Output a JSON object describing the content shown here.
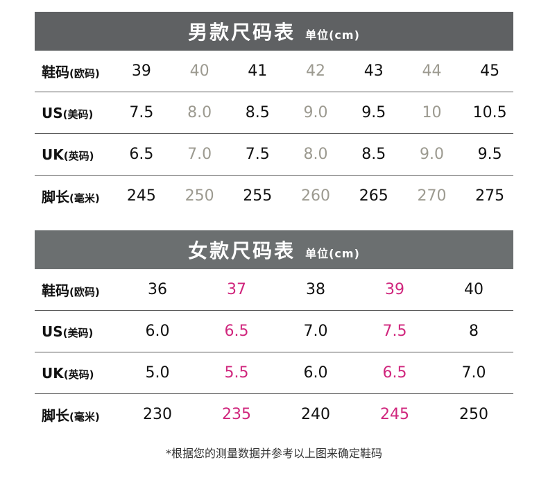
{
  "men": {
    "title": "男款尺码表",
    "unit": "单位(cm)",
    "rows": [
      {
        "label": "鞋码",
        "sub": "(欧码)",
        "values": [
          "39",
          "40",
          "41",
          "42",
          "43",
          "44",
          "45"
        ]
      },
      {
        "label": "US",
        "sub": "(美码)",
        "values": [
          "7.5",
          "8.0",
          "8.5",
          "9.0",
          "9.5",
          "10",
          "10.5"
        ]
      },
      {
        "label": "UK",
        "sub": "(英码)",
        "values": [
          "6.5",
          "7.0",
          "7.5",
          "8.0",
          "8.5",
          "9.0",
          "9.5"
        ]
      },
      {
        "label": "脚长",
        "sub": "(毫米)",
        "values": [
          "245",
          "250",
          "255",
          "260",
          "265",
          "270",
          "275"
        ]
      }
    ]
  },
  "women": {
    "title": "女款尺码表",
    "unit": "单位(cm)",
    "rows": [
      {
        "label": "鞋码",
        "sub": "(欧码)",
        "values": [
          "36",
          "37",
          "38",
          "39",
          "40"
        ]
      },
      {
        "label": "US",
        "sub": "(美码)",
        "values": [
          "6.0",
          "6.5",
          "7.0",
          "7.5",
          "8"
        ]
      },
      {
        "label": "UK",
        "sub": "(英码)",
        "values": [
          "5.0",
          "5.5",
          "6.0",
          "6.5",
          "7.0"
        ]
      },
      {
        "label": "脚长",
        "sub": "(毫米)",
        "values": [
          "230",
          "235",
          "240",
          "245",
          "250"
        ]
      }
    ]
  },
  "colors": {
    "men_banner": "#5f6163",
    "women_banner": "#6b6f70",
    "men_alt_value": "#9c9a90",
    "women_alt_value": "#d0267d"
  },
  "note": "*根据您的测量数据并参考以上图来确定鞋码"
}
